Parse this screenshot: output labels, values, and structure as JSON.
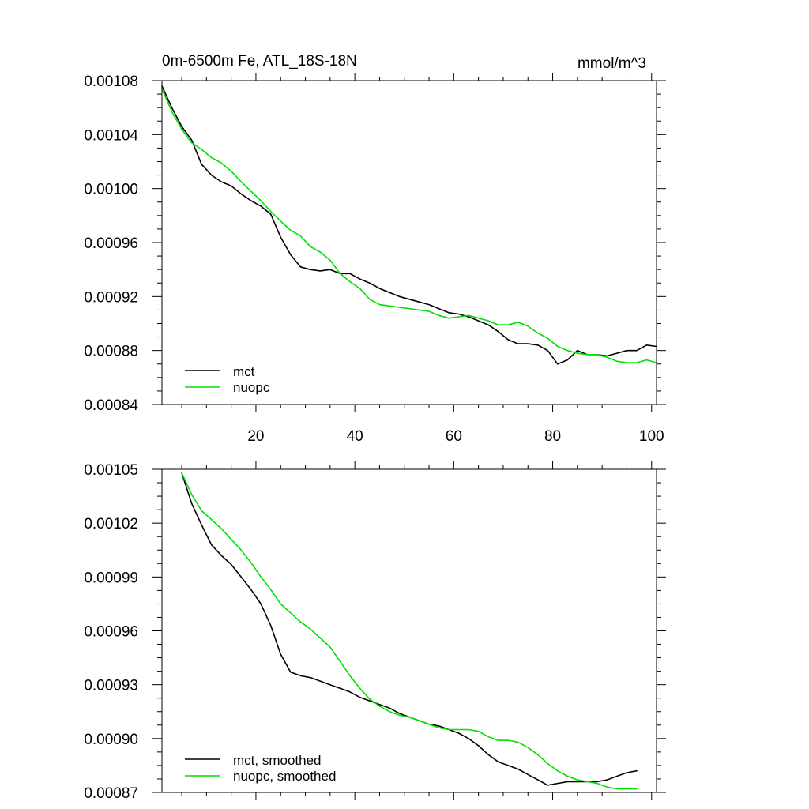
{
  "chart_data": [
    {
      "type": "line",
      "title": "0m-6500m Fe, ATL_18S-18N",
      "units": "mmol/m^3",
      "xlim": [
        1,
        101
      ],
      "ylim": [
        0.00084,
        0.00108
      ],
      "x_ticks": [
        20,
        40,
        60,
        80,
        100
      ],
      "y_ticks": [
        "0.00084",
        "0.00088",
        "0.00092",
        "0.00096",
        "0.00100",
        "0.00104",
        "0.00108"
      ],
      "x_tick_labels_shown": true,
      "grid": false,
      "legend_position": "bottom-left",
      "colors": {
        "mct": "#000000",
        "nuopc": "#00e000"
      },
      "series": [
        {
          "name": "mct",
          "x": [
            1,
            3,
            5,
            7,
            9,
            11,
            13,
            15,
            17,
            19,
            21,
            23,
            25,
            27,
            29,
            31,
            33,
            35,
            37,
            39,
            41,
            43,
            45,
            47,
            49,
            51,
            53,
            55,
            57,
            59,
            61,
            63,
            65,
            67,
            69,
            71,
            73,
            75,
            77,
            79,
            81,
            83,
            85,
            87,
            89,
            91,
            93,
            95,
            97,
            99,
            101
          ],
          "y": [
            0.001076,
            0.00106,
            0.001046,
            0.001036,
            0.001018,
            0.00101,
            0.001005,
            0.001002,
            0.000996,
            0.000991,
            0.000987,
            0.000981,
            0.000964,
            0.000951,
            0.000942,
            0.00094,
            0.000939,
            0.00094,
            0.000937,
            0.000937,
            0.000933,
            0.00093,
            0.000926,
            0.000923,
            0.00092,
            0.000918,
            0.000916,
            0.000914,
            0.000911,
            0.000908,
            0.000907,
            0.000905,
            0.000902,
            0.000899,
            0.000894,
            0.000888,
            0.000885,
            0.000885,
            0.000884,
            0.00088,
            0.00087,
            0.000873,
            0.00088,
            0.000877,
            0.000877,
            0.000876,
            0.000878,
            0.00088,
            0.00088,
            0.000884,
            0.000883
          ]
        },
        {
          "name": "nuopc",
          "x": [
            1,
            3,
            5,
            7,
            9,
            11,
            13,
            15,
            17,
            19,
            21,
            23,
            25,
            27,
            29,
            31,
            33,
            35,
            37,
            39,
            41,
            43,
            45,
            47,
            49,
            51,
            53,
            55,
            57,
            59,
            61,
            63,
            65,
            67,
            69,
            71,
            73,
            75,
            77,
            79,
            81,
            83,
            85,
            87,
            89,
            91,
            93,
            95,
            97,
            99,
            101
          ],
          "y": [
            0.001074,
            0.001057,
            0.001044,
            0.001034,
            0.001029,
            0.001023,
            0.001019,
            0.001013,
            0.001005,
            0.000998,
            0.000991,
            0.000983,
            0.000976,
            0.000969,
            0.000965,
            0.000957,
            0.000953,
            0.000947,
            0.000937,
            0.000931,
            0.000926,
            0.000918,
            0.000914,
            0.000913,
            0.000912,
            0.000911,
            0.00091,
            0.000909,
            0.000906,
            0.000904,
            0.000905,
            0.000906,
            0.000904,
            0.000902,
            0.000899,
            0.000899,
            0.000901,
            0.000898,
            0.000893,
            0.000889,
            0.000883,
            0.00088,
            0.000878,
            0.000877,
            0.000877,
            0.000875,
            0.000872,
            0.000871,
            0.000871,
            0.000873,
            0.000871
          ]
        }
      ]
    },
    {
      "type": "line",
      "xlim": [
        1,
        101
      ],
      "ylim": [
        0.00087,
        0.00105
      ],
      "x_ticks": [
        20,
        40,
        60,
        80,
        100
      ],
      "y_ticks": [
        "0.00087",
        "0.00090",
        "0.00093",
        "0.00096",
        "0.00099",
        "0.00102",
        "0.00105"
      ],
      "x_tick_labels_shown": false,
      "grid": false,
      "legend_position": "bottom-left",
      "colors": {
        "mct, smoothed": "#000000",
        "nuopc, smoothed": "#00e000"
      },
      "series": [
        {
          "name": "mct, smoothed",
          "x": [
            5,
            7,
            9,
            11,
            13,
            15,
            17,
            19,
            21,
            23,
            25,
            27,
            29,
            31,
            33,
            35,
            37,
            39,
            41,
            43,
            45,
            47,
            49,
            51,
            53,
            55,
            57,
            59,
            61,
            63,
            65,
            67,
            69,
            71,
            73,
            75,
            77,
            79,
            81,
            83,
            85,
            87,
            89,
            91,
            93,
            95,
            97
          ],
          "y": [
            0.001048,
            0.001031,
            0.001019,
            0.001008,
            0.001002,
            0.000997,
            0.00099,
            0.000983,
            0.000975,
            0.000963,
            0.000947,
            0.000937,
            0.000935,
            0.000934,
            0.000932,
            0.00093,
            0.000928,
            0.000926,
            0.000923,
            0.000921,
            0.000919,
            0.000917,
            0.000914,
            0.000912,
            0.00091,
            0.000908,
            0.000907,
            0.000905,
            0.000903,
            0.0009,
            0.000896,
            0.000891,
            0.000887,
            0.000885,
            0.000883,
            0.00088,
            0.000877,
            0.000874,
            0.000875,
            0.000876,
            0.000876,
            0.000876,
            0.000876,
            0.000877,
            0.000879,
            0.000881,
            0.000882
          ]
        },
        {
          "name": "nuopc, smoothed",
          "x": [
            5,
            7,
            9,
            11,
            13,
            15,
            17,
            19,
            21,
            23,
            25,
            27,
            29,
            31,
            33,
            35,
            37,
            39,
            41,
            43,
            45,
            47,
            49,
            51,
            53,
            55,
            57,
            59,
            61,
            63,
            65,
            67,
            69,
            71,
            73,
            75,
            77,
            79,
            81,
            83,
            85,
            87,
            89,
            91,
            93,
            95,
            97
          ],
          "y": [
            0.001048,
            0.001036,
            0.001027,
            0.001022,
            0.001017,
            0.001011,
            0.001005,
            0.000998,
            0.00099,
            0.000983,
            0.000975,
            0.00097,
            0.000965,
            0.000961,
            0.000956,
            0.000951,
            0.000943,
            0.000935,
            0.000928,
            0.000922,
            0.000918,
            0.000915,
            0.000913,
            0.000912,
            0.00091,
            0.000908,
            0.000906,
            0.000905,
            0.000905,
            0.000905,
            0.000904,
            0.000901,
            0.000899,
            0.000899,
            0.000898,
            0.000895,
            0.000891,
            0.000886,
            0.000882,
            0.000879,
            0.000877,
            0.000876,
            0.000875,
            0.000873,
            0.000872,
            0.000872,
            0.000872
          ]
        }
      ]
    }
  ]
}
